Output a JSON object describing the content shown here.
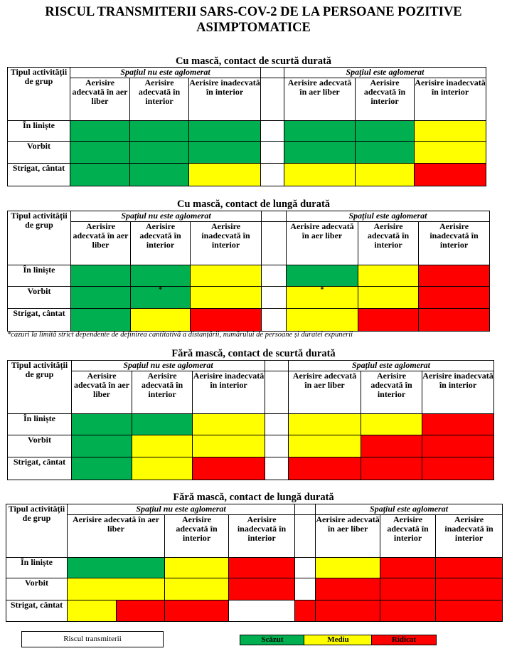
{
  "title_line1": "RISCUL TRANSMITERII SARS-COV-2 DE LA PERSOANE POZITIVE",
  "title_line2": "ASIMPTOMATICE",
  "group_header": "Tipul activității de grup",
  "not_crowded": "Spațiul nu este aglomerat",
  "crowded": "Spațiul este aglomerat",
  "columns": {
    "outdoor": "Aerisire adecvată în aer liber",
    "indoor": "Aerisire adecvată în interior",
    "inadequate": "Aerisire inadecvată în interior"
  },
  "rows": {
    "quiet": "În liniște",
    "talk": "Vorbit",
    "shout": "Strigat, cântat"
  },
  "sections": {
    "s1": "Cu mască, contact de scurtă durată",
    "s2": "Cu mască, contact de lungă durată",
    "s3": "Fără mască, contact de scurtă durată",
    "s4": "Fără mască, contact de lungă durată"
  },
  "star": "*",
  "footnote": "*cazuri la limită strict dependente de definirea cantitativă a distanțării, numărului de persoane și duratei expunerii",
  "legend": {
    "title": "Riscul transmiterii",
    "low": "Scăzut",
    "medium": "Mediu",
    "high": "Ridicat"
  },
  "colors": {
    "low": "#00b050",
    "medium": "#ffff00",
    "high": "#ff0000"
  },
  "risk_levels": {
    "s1": {
      "quiet": [
        "low",
        "low",
        "low",
        "low",
        "low",
        "medium"
      ],
      "talk": [
        "low",
        "low",
        "low",
        "low",
        "low",
        "medium"
      ],
      "shout": [
        "low",
        "low",
        "medium",
        "medium",
        "medium",
        "high"
      ]
    },
    "s2": {
      "quiet": [
        "low",
        "low",
        "medium",
        "low",
        "medium",
        "high"
      ],
      "talk": [
        "low",
        "low*",
        "medium",
        "medium*",
        "medium",
        "high"
      ],
      "shout": [
        "low",
        "medium",
        "high",
        "medium",
        "high",
        "high"
      ]
    },
    "s3": {
      "quiet": [
        "low",
        "low",
        "medium",
        "medium",
        "medium",
        "high"
      ],
      "talk": [
        "low",
        "medium",
        "medium",
        "medium",
        "high",
        "high"
      ],
      "shout": [
        "low",
        "medium",
        "high",
        "high",
        "high",
        "high"
      ]
    },
    "s4": {
      "quiet": [
        "low",
        "medium",
        "high",
        "medium",
        "high",
        "high"
      ],
      "talk": [
        "medium",
        "medium",
        "high",
        "high",
        "high",
        "high"
      ],
      "shout": [
        "medium / high",
        "high",
        "none",
        "high",
        "high",
        "high"
      ]
    }
  }
}
